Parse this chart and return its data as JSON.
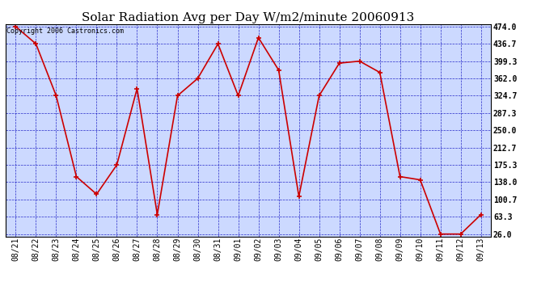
{
  "title": "Solar Radiation Avg per Day W/m2/minute 20060913",
  "copyright": "Copyright 2006 Castronics.com",
  "dates": [
    "08/21",
    "08/22",
    "08/23",
    "08/24",
    "08/25",
    "08/26",
    "08/27",
    "08/28",
    "08/29",
    "08/30",
    "08/31",
    "09/01",
    "09/02",
    "09/03",
    "09/04",
    "09/05",
    "09/06",
    "09/07",
    "09/08",
    "09/09",
    "09/10",
    "09/11",
    "09/12",
    "09/13"
  ],
  "values": [
    474.0,
    436.7,
    324.7,
    150.0,
    112.0,
    175.3,
    340.0,
    68.0,
    324.7,
    362.0,
    436.7,
    324.7,
    450.0,
    380.0,
    107.0,
    324.7,
    395.0,
    399.3,
    375.0,
    150.0,
    143.0,
    26.0,
    26.0,
    68.0
  ],
  "yticks": [
    26.0,
    63.3,
    100.7,
    138.0,
    175.3,
    212.7,
    250.0,
    287.3,
    324.7,
    362.0,
    399.3,
    436.7,
    474.0
  ],
  "line_color": "#cc0000",
  "marker_color": "#cc0000",
  "bg_color": "#ffffff",
  "plot_bg_color": "#ccd9ff",
  "grid_color": "#0000bb",
  "title_fontsize": 11,
  "copyright_fontsize": 6,
  "tick_fontsize": 7,
  "ymin": 26.0,
  "ymax": 474.0
}
